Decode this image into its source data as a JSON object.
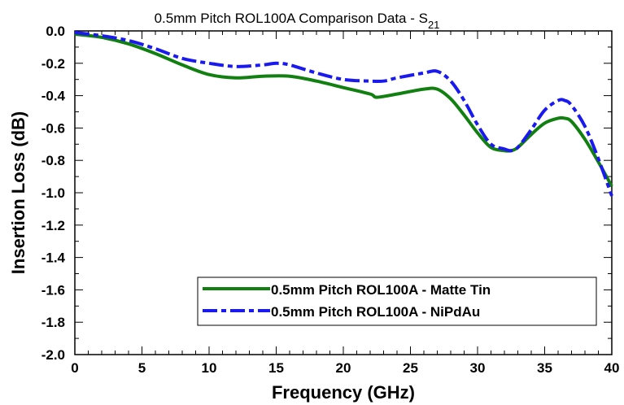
{
  "chart_data": {
    "type": "line",
    "title": "0.5mm Pitch ROL100A Comparison Data - S",
    "title_subscript": "21",
    "xlabel": "Frequency (GHz)",
    "ylabel": "Insertion Loss (dB)",
    "xlim": [
      0,
      40
    ],
    "ylim": [
      -2.0,
      0.0
    ],
    "x_ticks": [
      0,
      5,
      10,
      15,
      20,
      25,
      30,
      35,
      40
    ],
    "y_ticks": [
      0.0,
      -0.2,
      -0.4,
      -0.6,
      -0.8,
      -1.0,
      -1.2,
      -1.4,
      -1.6,
      -1.8,
      -2.0
    ],
    "x_tick_labels": [
      "0",
      "5",
      "10",
      "15",
      "20",
      "25",
      "30",
      "35",
      "40"
    ],
    "y_tick_labels": [
      "0.0",
      "-0.2",
      "-0.4",
      "-0.6",
      "-0.8",
      "-1.0",
      "-1.2",
      "-1.4",
      "-1.6",
      "-1.8",
      "-2.0"
    ],
    "grid": false,
    "legend_position": "bottom-right",
    "series": [
      {
        "name": "0.5mm Pitch ROL100A - Matte Tin",
        "color": "#118011",
        "style": "solid",
        "x": [
          0,
          2,
          4,
          6,
          8,
          10,
          12,
          14,
          16,
          18,
          20,
          22,
          22.5,
          24,
          26,
          27,
          28,
          29,
          30,
          31,
          32,
          32.5,
          33,
          34,
          35,
          36,
          36.5,
          37,
          38,
          39,
          40
        ],
        "y": [
          -0.02,
          -0.04,
          -0.08,
          -0.14,
          -0.21,
          -0.27,
          -0.29,
          -0.28,
          -0.28,
          -0.31,
          -0.35,
          -0.39,
          -0.41,
          -0.39,
          -0.36,
          -0.36,
          -0.42,
          -0.52,
          -0.63,
          -0.72,
          -0.74,
          -0.74,
          -0.72,
          -0.64,
          -0.57,
          -0.54,
          -0.54,
          -0.56,
          -0.67,
          -0.81,
          -0.96
        ]
      },
      {
        "name": "0.5mm Pitch ROL100A - NiPdAu",
        "color": "#1a1aee",
        "style": "dashdot",
        "x": [
          0,
          2,
          4,
          6,
          8,
          10,
          12,
          14,
          15,
          16,
          18,
          20,
          22,
          23,
          24,
          26,
          27,
          28,
          29,
          30,
          31,
          32,
          32.5,
          33,
          34,
          35,
          36,
          36.5,
          37,
          38,
          39,
          40
        ],
        "y": [
          -0.01,
          -0.03,
          -0.06,
          -0.11,
          -0.17,
          -0.2,
          -0.22,
          -0.21,
          -0.2,
          -0.21,
          -0.26,
          -0.3,
          -0.31,
          -0.31,
          -0.29,
          -0.26,
          -0.25,
          -0.31,
          -0.43,
          -0.58,
          -0.7,
          -0.73,
          -0.74,
          -0.72,
          -0.61,
          -0.49,
          -0.43,
          -0.43,
          -0.46,
          -0.59,
          -0.79,
          -1.02
        ]
      }
    ]
  }
}
